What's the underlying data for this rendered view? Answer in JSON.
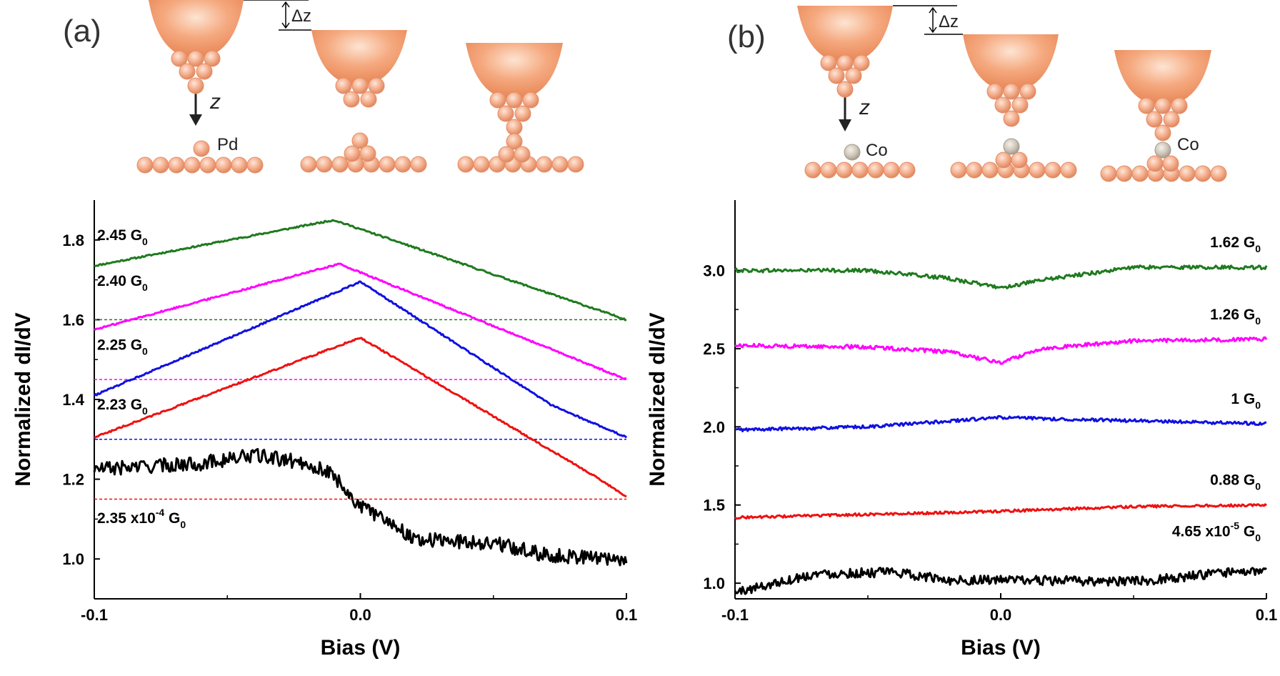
{
  "colors": {
    "green": "#1f7a1f",
    "magenta": "#ff00ff",
    "blue": "#1010e0",
    "red": "#ee1111",
    "black": "#000000",
    "atom": "#f2a27c",
    "co_atom": "#c9c0b4"
  },
  "panels": {
    "a": {
      "letter": "(a)",
      "species": "Pd",
      "z_label": "z",
      "dz_label": "Δz"
    },
    "b": {
      "letter": "(b)",
      "species": "Co",
      "z_label": "z",
      "dz_label": "Δz"
    }
  },
  "chart_data": [
    {
      "type": "line",
      "panel": "a",
      "xlabel": "Bias (V)",
      "ylabel": "Normalized dI/dV",
      "xlim": [
        -0.1,
        0.1
      ],
      "ylim": [
        0.9,
        1.9
      ],
      "x_ticks": [
        -0.1,
        0.0,
        0.1
      ],
      "x_tick_labels": [
        "-0.1",
        "0.0",
        "0.1"
      ],
      "y_ticks": [
        1.0,
        1.2,
        1.4,
        1.6,
        1.8
      ],
      "y_tick_labels": [
        "1.0",
        "1.2",
        "1.4",
        "1.6",
        "1.8"
      ],
      "series": [
        {
          "name": "2.45 G0",
          "label_main": "2.45 G",
          "label_sub": "0",
          "label_sup": "",
          "label_pre": "",
          "color": "green",
          "noise": 0.002,
          "points": [
            [
              -0.1,
              1.735
            ],
            [
              -0.01,
              1.85
            ],
            [
              0.1,
              1.6
            ]
          ],
          "baseline": 1.6
        },
        {
          "name": "2.40 G0",
          "label_main": "2.40 G",
          "label_sub": "0",
          "label_sup": "",
          "label_pre": "",
          "color": "magenta",
          "noise": 0.002,
          "points": [
            [
              -0.1,
              1.575
            ],
            [
              -0.008,
              1.74
            ],
            [
              0.1,
              1.45
            ]
          ],
          "baseline": 1.45
        },
        {
          "name": "2.25 G0",
          "label_main": "2.25 G",
          "label_sub": "0",
          "label_sup": "",
          "label_pre": "",
          "color": "blue",
          "noise": 0.002,
          "points": [
            [
              -0.1,
              1.41
            ],
            [
              0.0,
              1.695
            ],
            [
              0.072,
              1.385
            ],
            [
              0.1,
              1.305
            ]
          ],
          "baseline": 1.3
        },
        {
          "name": "2.23 G0",
          "label_main": "2.23 G",
          "label_sub": "0",
          "label_sup": "",
          "label_pre": "",
          "color": "red",
          "noise": 0.002,
          "points": [
            [
              -0.1,
              1.305
            ],
            [
              0.0,
              1.555
            ],
            [
              0.09,
              1.2
            ],
            [
              0.1,
              1.155
            ]
          ],
          "baseline": 1.15
        },
        {
          "name": "2.35 x10^-4 G0",
          "label_main": "2.35 x10",
          "label_sub": "0",
          "label_sup": "-4",
          "label_pre": " G",
          "color": "black",
          "noise": 0.018,
          "points": [
            [
              -0.1,
              1.225
            ],
            [
              -0.06,
              1.24
            ],
            [
              -0.04,
              1.26
            ],
            [
              -0.02,
              1.24
            ],
            [
              -0.01,
              1.21
            ],
            [
              0.0,
              1.13
            ],
            [
              0.01,
              1.1
            ],
            [
              0.02,
              1.05
            ],
            [
              0.05,
              1.04
            ],
            [
              0.07,
              1.01
            ],
            [
              0.1,
              1.0
            ]
          ],
          "baseline": null
        }
      ]
    },
    {
      "type": "line",
      "panel": "b",
      "xlabel": "Bias (V)",
      "ylabel": "Normalized dI/dV",
      "xlim": [
        -0.1,
        0.1
      ],
      "ylim": [
        0.9,
        3.45
      ],
      "x_ticks": [
        -0.1,
        0.0,
        0.1
      ],
      "x_tick_labels": [
        "-0.1",
        "0.0",
        "0.1"
      ],
      "y_ticks": [
        1.0,
        1.5,
        2.0,
        2.5,
        3.0
      ],
      "y_tick_labels": [
        "1.0",
        "1.5",
        "2.0",
        "2.5",
        "3.0"
      ],
      "series": [
        {
          "name": "1.62 G0",
          "label_main": "1.62 G",
          "label_sub": "0",
          "label_sup": "",
          "label_pre": "",
          "color": "green",
          "noise": 0.012,
          "points": [
            [
              -0.1,
              3.0
            ],
            [
              -0.05,
              3.0
            ],
            [
              -0.02,
              2.95
            ],
            [
              0.0,
              2.89
            ],
            [
              0.02,
              2.95
            ],
            [
              0.05,
              3.02
            ],
            [
              0.1,
              3.02
            ]
          ],
          "baseline": null
        },
        {
          "name": "1.26 G0",
          "label_main": "1.26 G",
          "label_sub": "0",
          "label_sup": "",
          "label_pre": "",
          "color": "magenta",
          "noise": 0.012,
          "points": [
            [
              -0.1,
              2.52
            ],
            [
              -0.05,
              2.51
            ],
            [
              -0.02,
              2.48
            ],
            [
              0.0,
              2.41
            ],
            [
              0.015,
              2.5
            ],
            [
              0.05,
              2.55
            ],
            [
              0.1,
              2.56
            ]
          ],
          "baseline": null
        },
        {
          "name": "1 G0",
          "label_main": "1 G",
          "label_sub": "0",
          "label_sup": "",
          "label_pre": "",
          "color": "blue",
          "noise": 0.01,
          "points": [
            [
              -0.1,
              1.98
            ],
            [
              -0.05,
              2.0
            ],
            [
              0.0,
              2.06
            ],
            [
              0.02,
              2.05
            ],
            [
              0.1,
              2.02
            ]
          ],
          "baseline": null
        },
        {
          "name": "0.88 G0",
          "label_main": "0.88 G",
          "label_sub": "0",
          "label_sup": "",
          "label_pre": "",
          "color": "red",
          "noise": 0.008,
          "points": [
            [
              -0.1,
              1.42
            ],
            [
              -0.05,
              1.44
            ],
            [
              0.0,
              1.46
            ],
            [
              0.05,
              1.49
            ],
            [
              0.1,
              1.5
            ]
          ],
          "baseline": null
        },
        {
          "name": "4.65 x10^-5 G0",
          "label_main": "4.65 x10",
          "label_sub": "0",
          "label_sup": "-5",
          "label_pre": " G",
          "color": "black",
          "noise": 0.03,
          "points": [
            [
              -0.1,
              0.94
            ],
            [
              -0.07,
              1.06
            ],
            [
              -0.04,
              1.07
            ],
            [
              -0.02,
              1.02
            ],
            [
              0.0,
              1.02
            ],
            [
              0.05,
              1.01
            ],
            [
              0.08,
              1.06
            ],
            [
              0.1,
              1.08
            ]
          ],
          "baseline": null
        }
      ]
    }
  ]
}
